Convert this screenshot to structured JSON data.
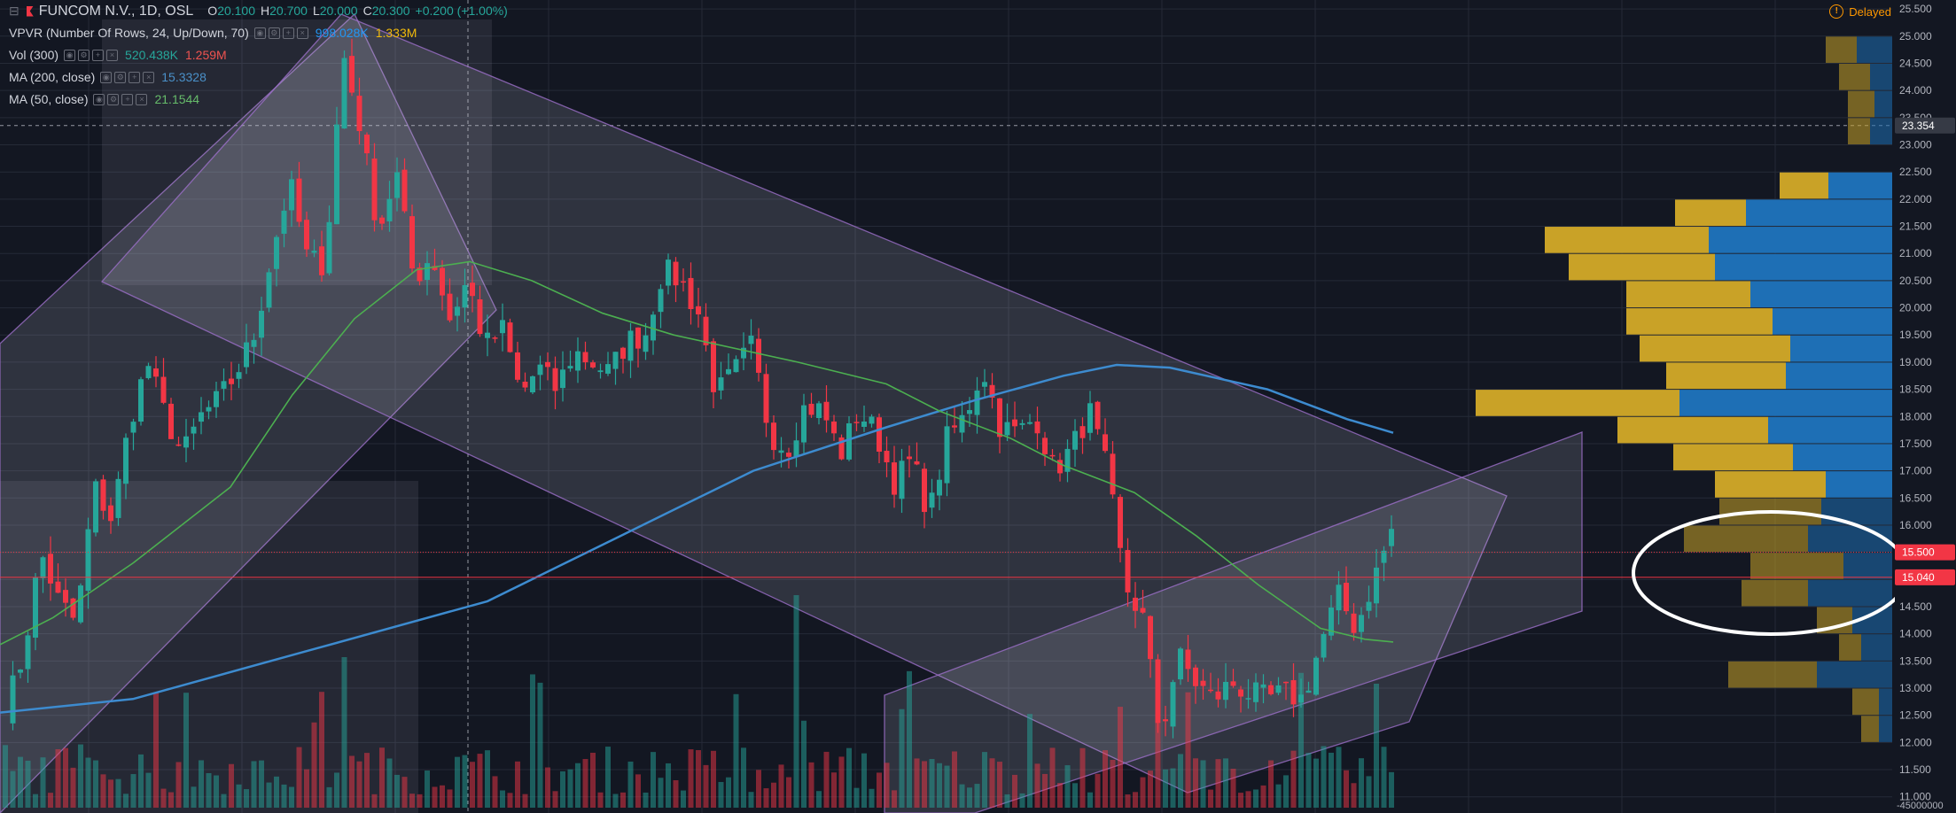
{
  "header": {
    "symbol": "FUNCOM N.V., 1D, OSL",
    "open_label": "O",
    "open": "20.100",
    "high_label": "H",
    "high": "20.700",
    "low_label": "L",
    "low": "20.000",
    "close_label": "C",
    "close": "20.300",
    "change": "+0.200 (+1.00%)",
    "delayed": "Delayed"
  },
  "indicators": [
    {
      "name": "VPVR (Number Of Rows, 24, Up/Down, 70)",
      "values": [
        "998.028K",
        "1.333M"
      ]
    },
    {
      "name": "Vol (300)",
      "values": [
        "520.438K",
        "1.259M"
      ]
    },
    {
      "name": "MA (200, close)",
      "values": [
        "15.3328"
      ]
    },
    {
      "name": "MA (50, close)",
      "values": [
        "21.1544"
      ]
    }
  ],
  "colors": {
    "up": "#26a69a",
    "down": "#f23645",
    "ma200": "#3d8bcf",
    "ma50": "#4caf50",
    "vp_up": "#1e6fb5",
    "vp_down": "#c9a227",
    "channel": "#9c6fc9"
  },
  "chart_data": {
    "type": "candlestick",
    "y_axis_ticks": [
      "25.500",
      "25.000",
      "24.500",
      "24.000",
      "23.500",
      "23.000",
      "22.500",
      "22.000",
      "21.500",
      "21.000",
      "20.500",
      "20.000",
      "19.500",
      "19.000",
      "18.500",
      "18.000",
      "17.500",
      "17.000",
      "16.500",
      "16.000",
      "15.500",
      "15.000",
      "14.500",
      "14.000",
      "13.500",
      "13.000",
      "12.500",
      "12.000",
      "11.500",
      "11.000"
    ],
    "ylim": [
      10.8,
      25.6
    ],
    "volume_axis_label": "-45000000",
    "price_labels": [
      {
        "value": 23.354,
        "text": "23.354",
        "style": "crosshair"
      },
      {
        "value": 15.5,
        "text": "15.500",
        "style": "level"
      },
      {
        "value": 15.04,
        "text": "15.040",
        "style": "last"
      }
    ],
    "ohlc_anchor_prices": [
      12.6,
      13.6,
      15.5,
      14.6,
      14.2,
      16.7,
      16.1,
      17.9,
      19.0,
      18.0,
      17.3,
      18.0,
      18.3,
      18.8,
      19.5,
      21.0,
      22.3,
      20.9,
      20.8,
      24.7,
      23.3,
      21.4,
      22.5,
      20.5,
      21.0,
      19.8,
      20.5,
      19.3,
      19.6,
      18.4,
      18.9,
      18.5,
      19.2,
      19.0,
      18.8,
      19.4,
      19.5,
      20.7,
      20.5,
      19.9,
      18.4,
      18.8,
      19.3,
      17.7,
      17.4,
      18.2,
      18.1,
      17.3,
      18.1,
      17.7,
      16.8,
      17.2,
      16.2,
      17.6,
      18.0,
      18.9,
      17.8,
      17.7,
      18.0,
      17.0,
      17.4,
      18.1,
      17.0,
      14.9,
      14.3,
      12.1,
      13.6,
      13.1,
      12.8,
      13.1,
      12.9,
      12.8,
      12.9,
      12.8,
      13.8,
      14.7,
      14.1,
      15.0,
      15.9
    ]
  }
}
